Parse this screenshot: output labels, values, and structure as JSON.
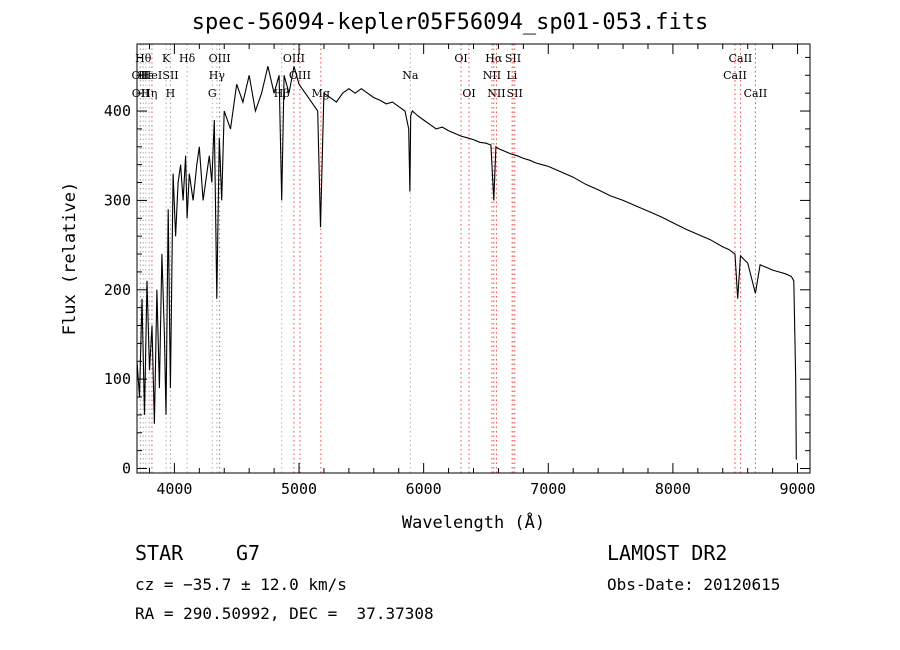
{
  "chart_data": {
    "type": "line",
    "title": "spec-56094-kepler05F56094_sp01-053.fits",
    "xlabel": "Wavelength (Å)",
    "ylabel": "Flux (relative)",
    "xlim": [
      3700,
      9100
    ],
    "ylim": [
      -5,
      475
    ],
    "x_ticks": [
      4000,
      5000,
      6000,
      7000,
      8000,
      9000
    ],
    "y_ticks": [
      0,
      100,
      200,
      300,
      400
    ],
    "x_tick_labels": [
      "4000",
      "5000",
      "6000",
      "7000",
      "8000",
      "9000"
    ],
    "y_tick_labels": [
      "0",
      "100",
      "200",
      "300",
      "400"
    ],
    "series": [
      {
        "name": "spectrum",
        "x": [
          3700,
          3720,
          3740,
          3760,
          3780,
          3800,
          3820,
          3840,
          3860,
          3880,
          3900,
          3920,
          3933,
          3950,
          3968,
          3990,
          4010,
          4030,
          4050,
          4070,
          4090,
          4102,
          4120,
          4150,
          4180,
          4200,
          4230,
          4260,
          4280,
          4300,
          4320,
          4340,
          4360,
          4380,
          4400,
          4450,
          4500,
          4550,
          4600,
          4650,
          4700,
          4750,
          4800,
          4840,
          4861,
          4880,
          4920,
          4960,
          5000,
          5050,
          5100,
          5150,
          5172,
          5200,
          5250,
          5300,
          5350,
          5400,
          5450,
          5500,
          5550,
          5600,
          5650,
          5700,
          5750,
          5800,
          5850,
          5880,
          5890,
          5896,
          5910,
          5950,
          6000,
          6050,
          6100,
          6150,
          6200,
          6250,
          6300,
          6350,
          6400,
          6450,
          6500,
          6540,
          6563,
          6580,
          6600,
          6650,
          6700,
          6750,
          6800,
          6850,
          6900,
          6950,
          7000,
          7100,
          7200,
          7300,
          7400,
          7500,
          7600,
          7700,
          7800,
          7900,
          8000,
          8100,
          8200,
          8300,
          8400,
          8450,
          8498,
          8520,
          8542,
          8570,
          8600,
          8662,
          8700,
          8750,
          8800,
          8850,
          8900,
          8950,
          8970,
          8985,
          8990
        ],
        "y": [
          120,
          80,
          190,
          60,
          210,
          110,
          160,
          50,
          200,
          90,
          240,
          150,
          60,
          290,
          90,
          330,
          260,
          320,
          340,
          300,
          350,
          280,
          330,
          300,
          340,
          360,
          300,
          330,
          350,
          320,
          390,
          190,
          370,
          300,
          400,
          380,
          430,
          410,
          440,
          400,
          420,
          450,
          420,
          440,
          300,
          440,
          420,
          450,
          430,
          420,
          410,
          400,
          270,
          420,
          415,
          410,
          420,
          425,
          420,
          425,
          420,
          415,
          412,
          408,
          410,
          405,
          400,
          380,
          310,
          395,
          400,
          395,
          390,
          385,
          380,
          382,
          378,
          375,
          372,
          370,
          368,
          365,
          364,
          362,
          300,
          360,
          358,
          355,
          352,
          350,
          347,
          345,
          342,
          340,
          338,
          332,
          326,
          318,
          312,
          305,
          300,
          294,
          288,
          282,
          275,
          268,
          262,
          256,
          248,
          245,
          240,
          190,
          238,
          234,
          230,
          196,
          228,
          225,
          222,
          220,
          218,
          215,
          210,
          100,
          10
        ]
      }
    ],
    "lines": [
      {
        "label": "OII",
        "x": 3727,
        "row": 1,
        "color": "#ff4444"
      },
      {
        "label": "OII",
        "x": 3729,
        "row": 2,
        "color": "#b0b0b0"
      },
      {
        "label": "Hθ",
        "x": 3750,
        "row": 0,
        "color": "#b0b0b0"
      },
      {
        "label": "Hε",
        "x": 3771,
        "row": 1,
        "color": "#b0b0b0"
      },
      {
        "label": "Hη",
        "x": 3798,
        "row": 2,
        "color": "#b0b0b0"
      },
      {
        "label": "HeI",
        "x": 3820,
        "row": 1,
        "color": "#ff4444"
      },
      {
        "label": "K",
        "x": 3934,
        "row": 0,
        "color": "#b0b0b0"
      },
      {
        "label": "SII",
        "x": 3969,
        "row": 1,
        "color": "#ff4444"
      },
      {
        "label": "H",
        "x": 3968,
        "row": 2,
        "color": "#b0b0b0"
      },
      {
        "label": "Hδ",
        "x": 4102,
        "row": 0,
        "color": "#b0b0b0"
      },
      {
        "label": "OIII",
        "x": 4363,
        "row": 0,
        "color": "#ff4444"
      },
      {
        "label": "Hγ",
        "x": 4341,
        "row": 1,
        "color": "#b0b0b0"
      },
      {
        "label": "G",
        "x": 4304,
        "row": 2,
        "color": "#b0b0b0"
      },
      {
        "label": "OIII",
        "x": 4959,
        "row": 0,
        "color": "#ff4444"
      },
      {
        "label": "OIII",
        "x": 5007,
        "row": 1,
        "color": "#ff4444"
      },
      {
        "label": "Hβ",
        "x": 4861,
        "row": 2,
        "color": "#b0b0b0"
      },
      {
        "label": "Mg",
        "x": 5175,
        "row": 2,
        "color": "#ff4444"
      },
      {
        "label": "Na",
        "x": 5893,
        "row": 1,
        "color": "#b0b0b0"
      },
      {
        "label": "OI",
        "x": 6300,
        "row": 0,
        "color": "#ff4444"
      },
      {
        "label": "OI",
        "x": 6364,
        "row": 2,
        "color": "#ff4444"
      },
      {
        "label": "Hα",
        "x": 6563,
        "row": 0,
        "color": "#ff4444"
      },
      {
        "label": "SII",
        "x": 6717,
        "row": 0,
        "color": "#ff4444"
      },
      {
        "label": "NII",
        "x": 6548,
        "row": 1,
        "color": "#ff4444"
      },
      {
        "label": "Li",
        "x": 6708,
        "row": 1,
        "color": "#b0b0b0"
      },
      {
        "label": "NII",
        "x": 6584,
        "row": 2,
        "color": "#ff4444"
      },
      {
        "label": "SII",
        "x": 6731,
        "row": 2,
        "color": "#ff4444"
      },
      {
        "label": "CaII",
        "x": 8542,
        "row": 0,
        "color": "#ff4444"
      },
      {
        "label": "CaII",
        "x": 8498,
        "row": 1,
        "color": "#ff4444"
      },
      {
        "label": "CaII",
        "x": 8662,
        "row": 2,
        "color": "#ff4444"
      }
    ]
  },
  "info": {
    "class": "STAR",
    "subclass": "G7",
    "survey": "LAMOST DR2",
    "cz": "cz = −35.7 ± 12.0 km/s",
    "obs_date": "Obs-Date: 20120615",
    "coords": "RA = 290.50992, DEC =  37.37308"
  }
}
